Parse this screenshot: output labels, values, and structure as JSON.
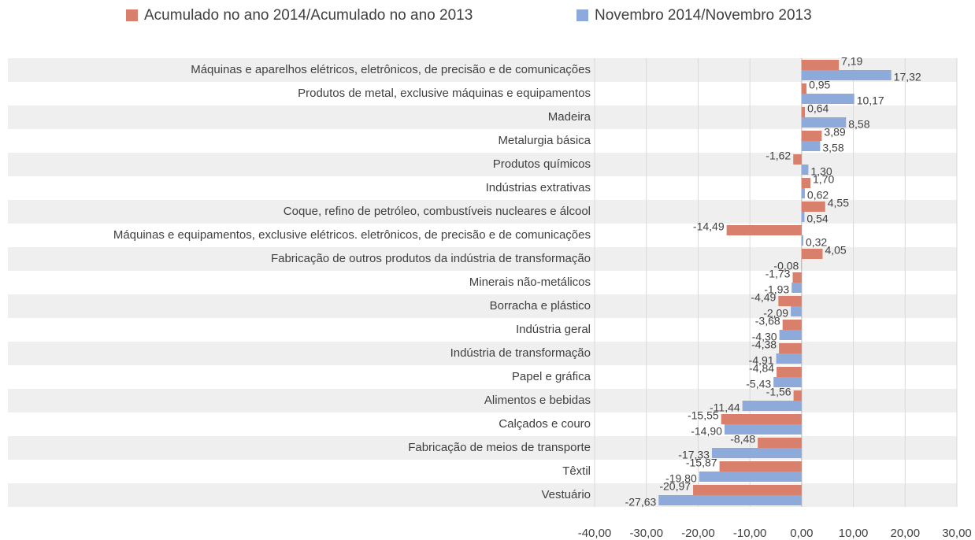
{
  "chart_data": {
    "type": "barh",
    "categories": [
      "Máquinas e aparelhos elétricos, eletrônicos, de precisão e de comunicações",
      "Produtos de metal, exclusive máquinas e equipamentos",
      "Madeira",
      "Metalurgia básica",
      "Produtos químicos",
      "Indústrias extrativas",
      "Coque, refino de petróleo, combustíveis nucleares e álcool",
      "Máquinas e equipamentos, exclusive elétricos. eletrônicos, de precisão e de comunicações",
      "Fabricação de outros produtos da indústria de transformação",
      "Minerais não-metálicos",
      "Borracha e plástico",
      "Indústria geral",
      "Indústria de transformação",
      "Papel e gráfica",
      "Alimentos e bebidas",
      "Calçados e couro",
      "Fabricação de meios de transporte",
      "Têxtil",
      "Vestuário"
    ],
    "series": [
      {
        "name": "Acumulado no ano 2014/Acumulado no ano 2013",
        "color": "#d9806d",
        "values": [
          7.19,
          0.95,
          0.64,
          3.89,
          -1.62,
          1.7,
          4.55,
          -14.49,
          4.05,
          -1.73,
          -4.49,
          -3.68,
          -4.38,
          -4.84,
          -1.56,
          -15.55,
          -8.48,
          -15.87,
          -20.97
        ],
        "value_labels": [
          "7,19",
          "0,95",
          "0,64",
          "3,89",
          "-1,62",
          "1,70",
          "4,55",
          "-14,49",
          "4,05",
          "-1,73",
          "-4,49",
          "-3,68",
          "-4,38",
          "-4,84",
          "-1,56",
          "-15,55",
          "-8,48",
          "-15,87",
          "-20,97"
        ]
      },
      {
        "name": "Novembro 2014/Novembro 2013",
        "color": "#8eaadb",
        "values": [
          17.32,
          10.17,
          8.58,
          3.58,
          1.3,
          0.62,
          0.54,
          0.32,
          -0.08,
          -1.93,
          -2.09,
          -4.3,
          -4.91,
          -5.43,
          -11.44,
          -14.9,
          -17.33,
          -19.8,
          -27.63
        ],
        "value_labels": [
          "17,32",
          "10,17",
          "8,58",
          "3,58",
          "1,30",
          "0,62",
          "0,54",
          "0,32",
          "-0,08",
          "-1,93",
          "-2,09",
          "-4,30",
          "-4,91",
          "-5,43",
          "-11,44",
          "-14,90",
          "-17,33",
          "-19,80",
          "-27,63"
        ]
      }
    ],
    "xlim": [
      -40,
      30
    ],
    "xticks": [
      {
        "value": -40,
        "label": "-40,00"
      },
      {
        "value": -30,
        "label": "-30,00"
      },
      {
        "value": -20,
        "label": "-20,00"
      },
      {
        "value": -10,
        "label": "-10,00"
      },
      {
        "value": 0,
        "label": "0,00"
      },
      {
        "value": 10,
        "label": "10,00"
      },
      {
        "value": 20,
        "label": "20,00"
      },
      {
        "value": 30,
        "label": "30,00"
      }
    ],
    "grid": true,
    "legend": "top"
  }
}
